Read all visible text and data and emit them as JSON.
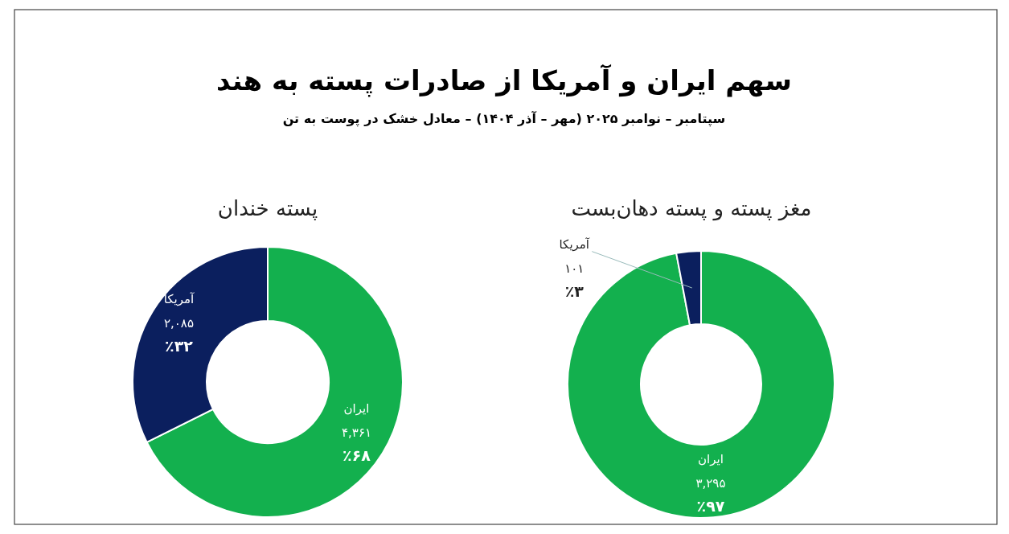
{
  "chart_data": [
    {
      "type": "other",
      "title": "سهم ایران و آمریکا از صادرات پسته به هند",
      "subtitle": "سپتامبر – نوامبر ۲۰۲۵ (مهر – آذر ۱۴۰۴) – معادل خشک در پوست به تن"
    },
    {
      "type": "donut",
      "title": "پسته خندان",
      "categories": [
        "ایران",
        "آمریکا"
      ],
      "values": [
        4361,
        2085
      ],
      "colors": [
        "#13b04e",
        "#0b1f5e"
      ],
      "value_labels": [
        "۴,۳۶۱",
        "۲,۰۸۵"
      ],
      "annotations": [
        {
          "text": "٪۶۸",
          "x": "ایران"
        },
        {
          "text": "٪۳۲",
          "x": "آمریکا"
        }
      ]
    },
    {
      "type": "donut",
      "title": "مغز پسته و پسته دهان‌بست",
      "categories": [
        "ایران",
        "آمریکا"
      ],
      "values": [
        3295,
        101
      ],
      "colors": [
        "#13b04e",
        "#0b1f5e"
      ],
      "value_labels": [
        "۳,۲۹۵",
        "۱۰۱"
      ],
      "annotations": [
        {
          "text": "٪۹۷",
          "x": "ایران"
        },
        {
          "text": "٪۳",
          "x": "آمریکا"
        }
      ]
    }
  ]
}
